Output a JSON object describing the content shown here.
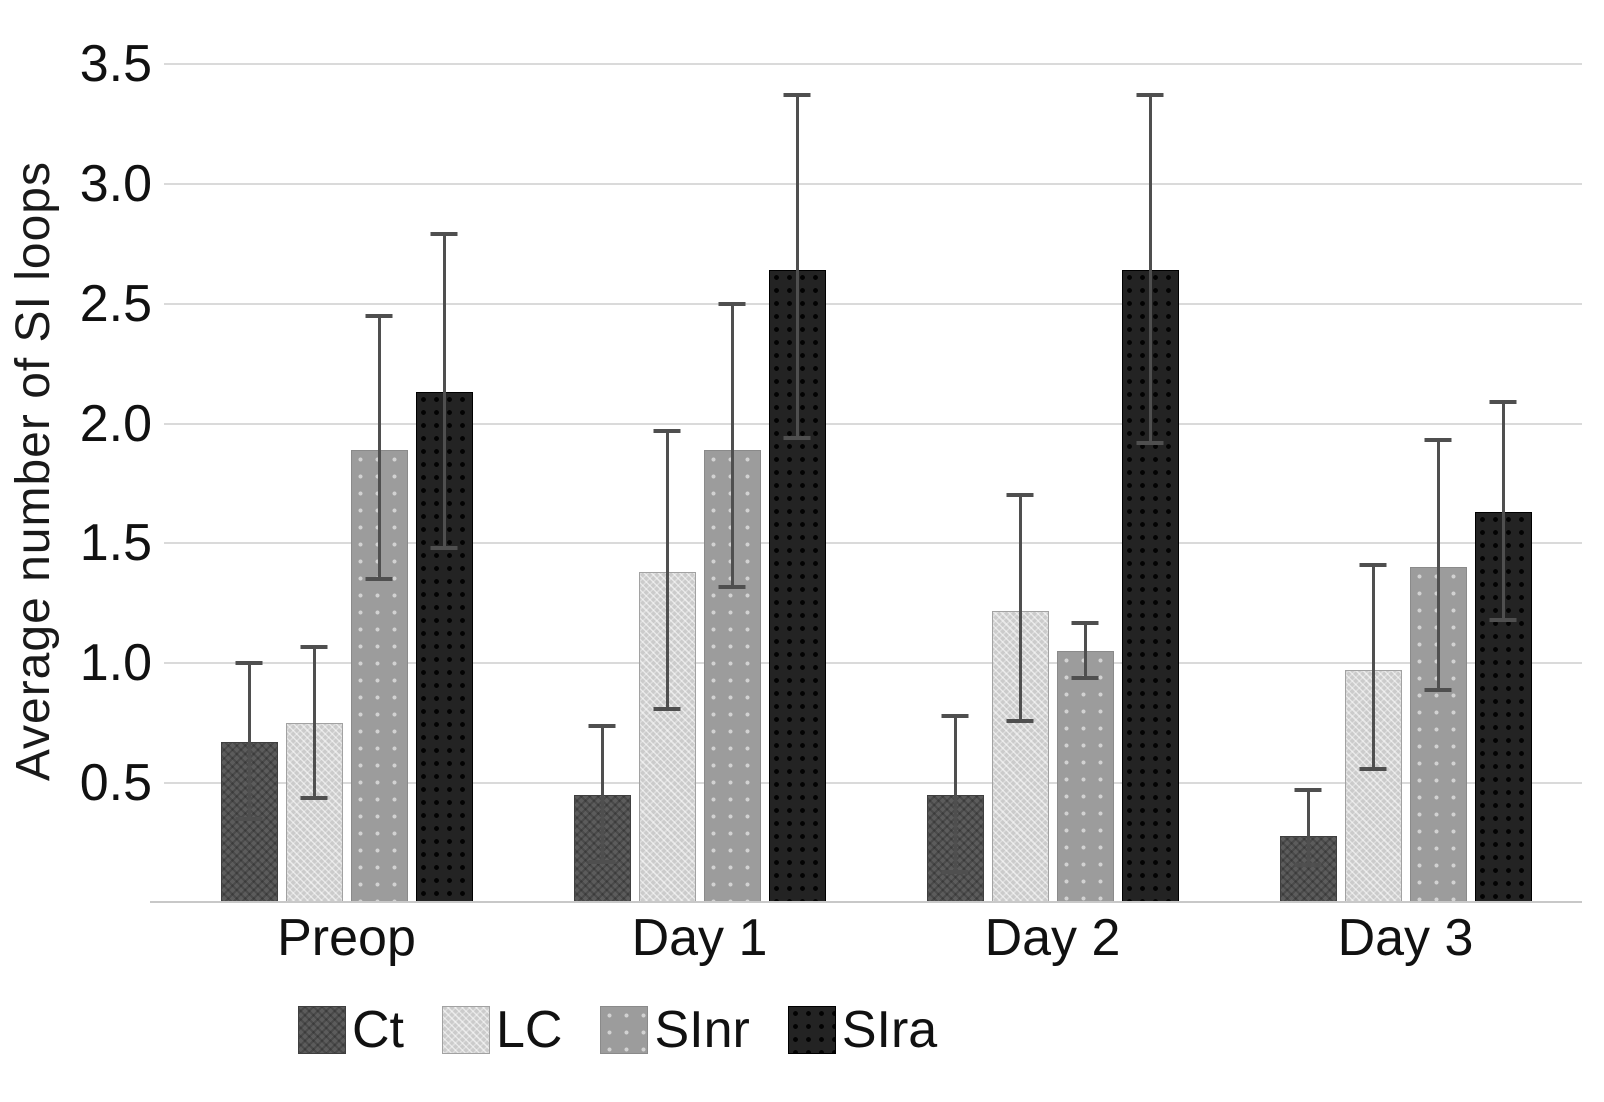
{
  "chart_data": {
    "type": "bar",
    "title": "",
    "ylabel": "Average number of SI loops",
    "xlabel": "",
    "categories": [
      "Preop",
      "Day 1",
      "Day 2",
      "Day 3"
    ],
    "series": [
      {
        "name": "Ct",
        "color": "#5c5c5c",
        "values": [
          0.67,
          0.45,
          0.45,
          0.28
        ],
        "err_low": [
          0.35,
          0.17,
          0.13,
          0.16
        ],
        "err_high": [
          1.0,
          0.74,
          0.78,
          0.47
        ]
      },
      {
        "name": "LC",
        "color": "#cbcbcb",
        "values": [
          0.75,
          1.38,
          1.22,
          0.97
        ],
        "err_low": [
          0.44,
          0.81,
          0.76,
          0.56
        ],
        "err_high": [
          1.07,
          1.97,
          1.7,
          1.41
        ]
      },
      {
        "name": "SInr",
        "color": "#9c9c9c",
        "values": [
          1.89,
          1.89,
          1.05,
          1.4
        ],
        "err_low": [
          1.35,
          1.32,
          0.94,
          0.89
        ],
        "err_high": [
          2.45,
          2.5,
          1.17,
          1.93
        ]
      },
      {
        "name": "SIra",
        "color": "#232323",
        "values": [
          2.13,
          2.64,
          2.64,
          1.63
        ],
        "err_low": [
          1.48,
          1.94,
          1.92,
          1.18
        ],
        "err_high": [
          2.79,
          3.37,
          3.37,
          2.09
        ]
      }
    ],
    "y_ticks": [
      "3.5",
      "3.0",
      "2.5",
      "2.0",
      "1.5",
      "1.0",
      "0.5"
    ],
    "ylim": [
      0,
      3.6
    ],
    "grid": true,
    "error_bar_color": "#4f4f4f",
    "legend_position": "bottom"
  }
}
